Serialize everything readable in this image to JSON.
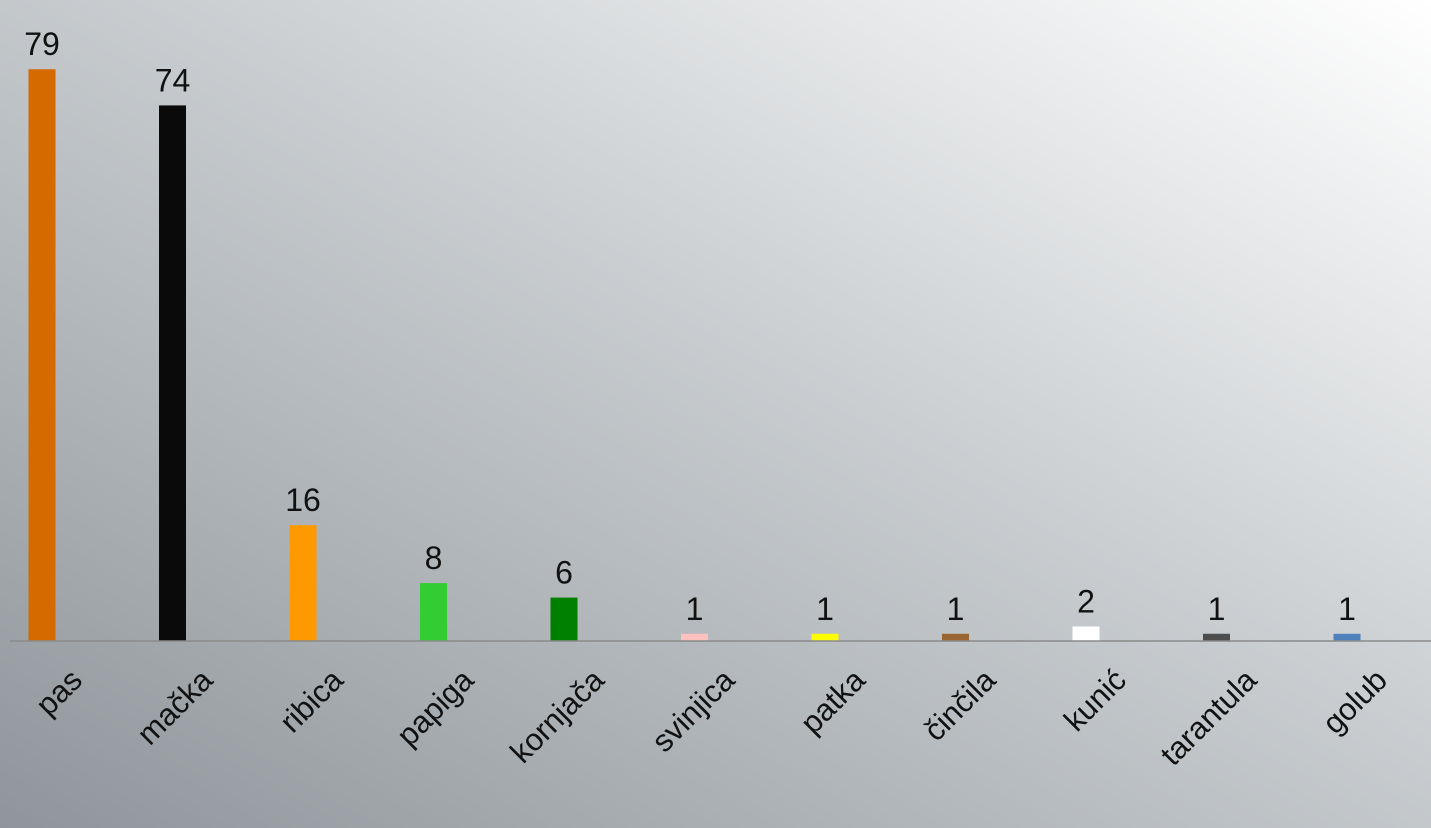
{
  "chart_data": {
    "type": "bar",
    "categories": [
      "pas",
      "mačka",
      "ribica",
      "papiga",
      "kornjača",
      "svinjica",
      "patka",
      "činčila",
      "kunić",
      "tarantula",
      "golub"
    ],
    "values": [
      79,
      74,
      16,
      8,
      6,
      1,
      1,
      1,
      2,
      1,
      1
    ],
    "colors": [
      "#d46a00",
      "#0a0a0a",
      "#ff9900",
      "#33cc33",
      "#008000",
      "#ffc0c0",
      "#ffff00",
      "#996633",
      "#ffffff",
      "#4d4d4d",
      "#4f81bd"
    ],
    "ylim": [
      0,
      80
    ]
  }
}
